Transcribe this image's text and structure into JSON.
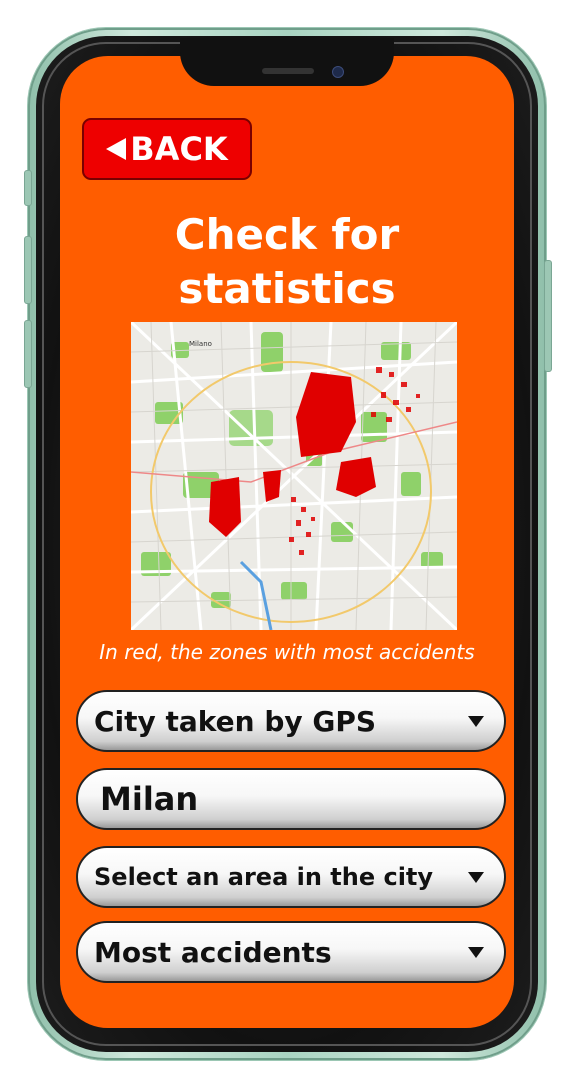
{
  "header": {
    "back_label": "BACK",
    "title_line1": "Check for",
    "title_line2": "statistics"
  },
  "map": {
    "caption": "In red, the zones with most accidents",
    "labels": [
      "Milano"
    ]
  },
  "controls": {
    "gps_dropdown": "City taken by GPS",
    "city_field": "Milan",
    "area_dropdown": "Select an area in the city",
    "sort_dropdown": "Most accidents"
  },
  "colors": {
    "screen": "#ff5d00",
    "back_button": "#ee0000",
    "accident_zone": "#e00000"
  }
}
